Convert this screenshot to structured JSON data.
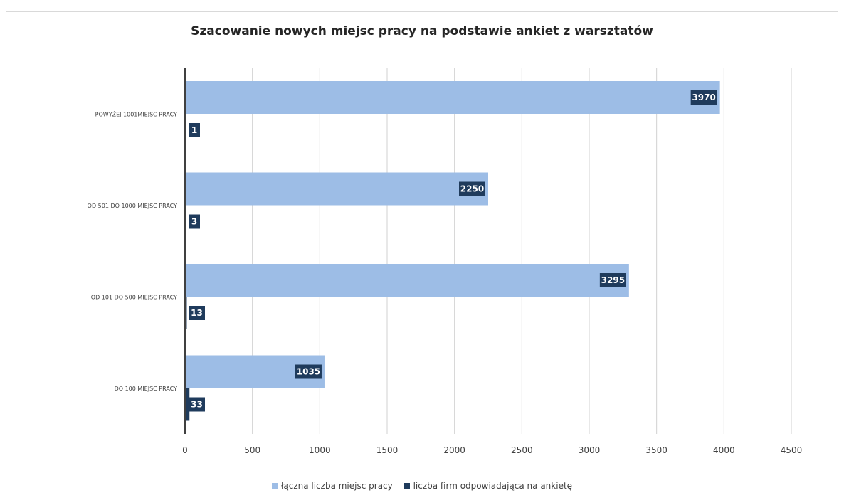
{
  "chart_data": {
    "type": "bar",
    "orientation": "horizontal",
    "title": "Szacowanie nowych miejsc pracy na podstawie ankiet z warsztatów",
    "categories": [
      "POWYŻEJ  1001MIEJSC PRACY",
      "OD 501 DO 1000 MIEJSC PRACY",
      "OD 101 DO 500 MIEJSC PRACY",
      "DO 100 MIEJSC PRACY"
    ],
    "series": [
      {
        "name": "łączna liczba miejsc pracy",
        "values": [
          3970,
          2250,
          3295,
          1035
        ],
        "color": "#9dbde6"
      },
      {
        "name": "liczba firm odpowiadająca na ankietę",
        "values": [
          1,
          3,
          13,
          33
        ],
        "color": "#1f3b5c"
      }
    ],
    "xlim": [
      0,
      4500
    ],
    "xticks": [
      "0",
      "500",
      "1000",
      "1500",
      "2000",
      "2500",
      "3000",
      "3500",
      "4000",
      "4500"
    ],
    "grid": "vertical",
    "legend_position": "bottom",
    "data_label_color": "#ffffff"
  }
}
